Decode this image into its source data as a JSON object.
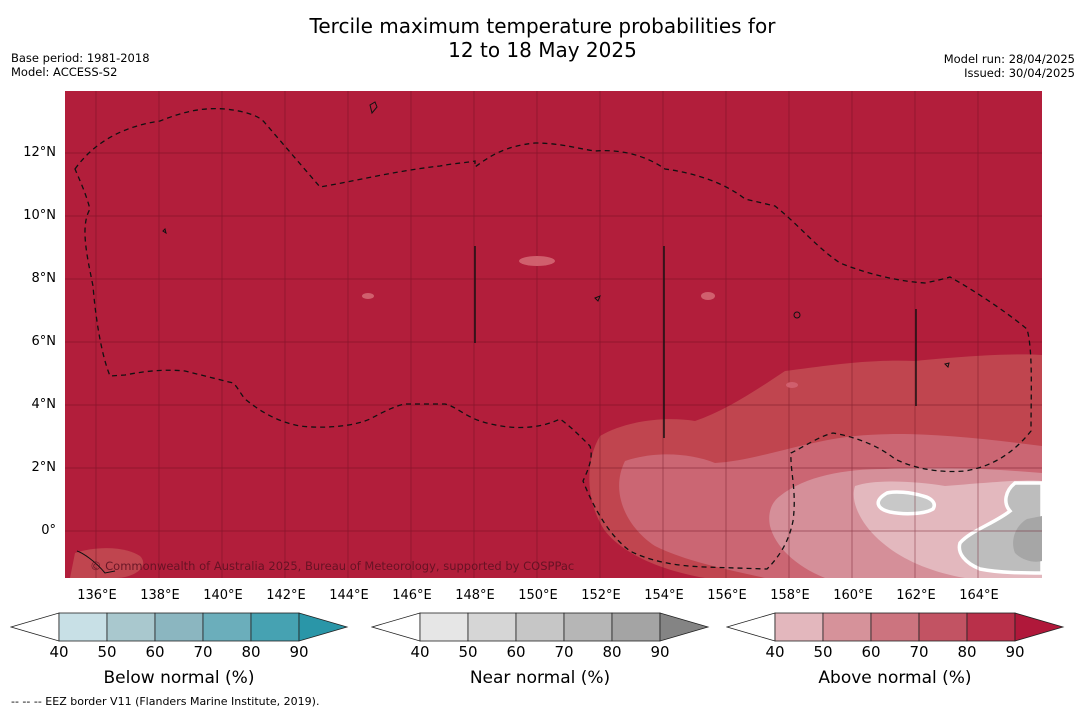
{
  "title": {
    "line1": "Tercile maximum temperature probabilities for",
    "line2": "12 to 18 May 2025"
  },
  "info_left": {
    "base_period": "Base period: 1981-2018",
    "model": "Model: ACCESS-S2"
  },
  "info_right": {
    "model_run": "Model run: 28/04/2025",
    "issued": "Issued: 30/04/2025"
  },
  "map": {
    "lat_labels": [
      "12°N",
      "10°N",
      "8°N",
      "6°N",
      "4°N",
      "2°N",
      "0°"
    ],
    "lon_labels": [
      "136°E",
      "138°E",
      "140°E",
      "142°E",
      "144°E",
      "146°E",
      "148°E",
      "150°E",
      "152°E",
      "154°E",
      "156°E",
      "158°E",
      "160°E",
      "162°E",
      "164°E"
    ],
    "copyright": "© Commonwealth of Australia 2025, Bureau of Meteorology, supported by COSPPac",
    "dominant_category": "Above normal",
    "background_color": "#b21e3b"
  },
  "colorbars": [
    {
      "label": "Below normal (%)",
      "ticks": [
        "40",
        "50",
        "60",
        "70",
        "80",
        "90"
      ],
      "colors": [
        "#ffffff",
        "#c8e0e6",
        "#a9c8ce",
        "#8bb6c0",
        "#6baebb",
        "#46a2b2",
        "#2a96a8"
      ]
    },
    {
      "label": "Near normal (%)",
      "ticks": [
        "40",
        "50",
        "60",
        "70",
        "80",
        "90"
      ],
      "colors": [
        "#ffffff",
        "#e6e6e6",
        "#d6d6d6",
        "#c6c6c6",
        "#b6b6b6",
        "#a4a4a4",
        "#848484"
      ]
    },
    {
      "label": "Above normal (%)",
      "ticks": [
        "40",
        "50",
        "60",
        "70",
        "80",
        "90"
      ],
      "colors": [
        "#ffffff",
        "#e3b7bd",
        "#d6929a",
        "#cc747f",
        "#c25363",
        "#b9304a",
        "#b0183a"
      ]
    }
  ],
  "footer": {
    "eez_legend": "--  --  -- EEZ border V11 (Flanders Marine Institute, 2019)."
  }
}
